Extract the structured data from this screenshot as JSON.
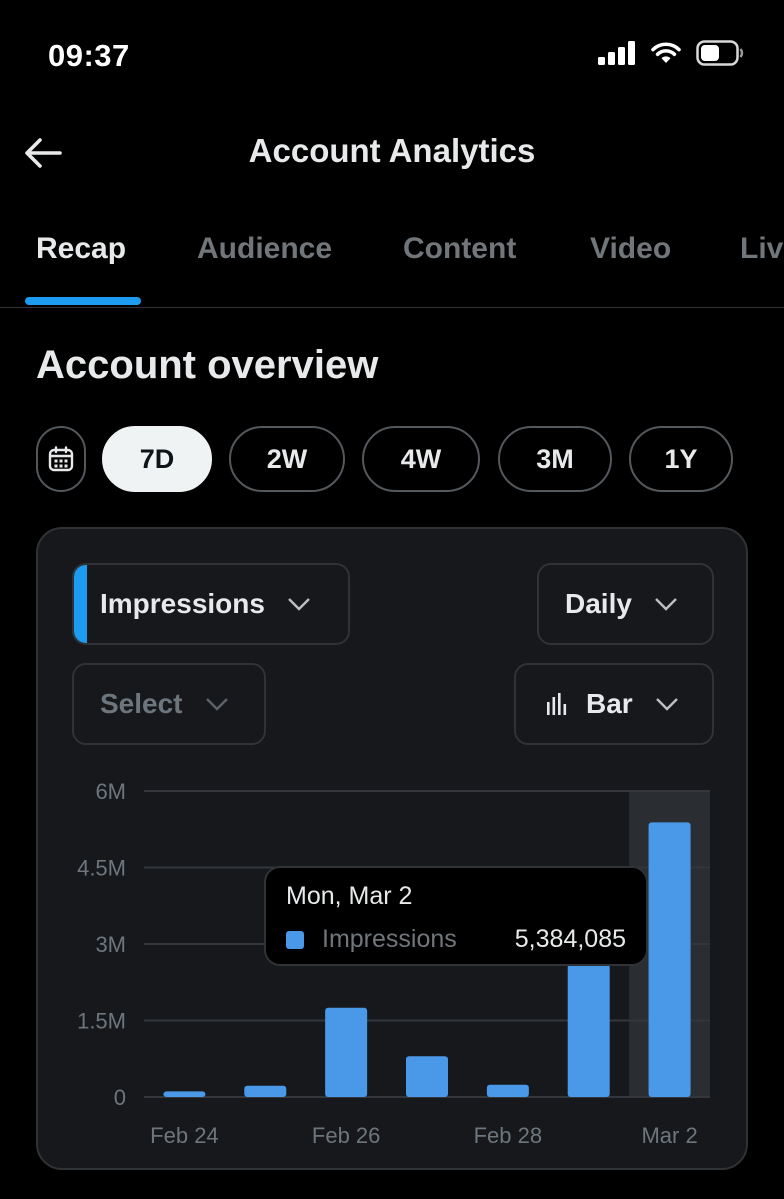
{
  "status_bar": {
    "time": "09:37",
    "icons": [
      "cellular-signal-icon",
      "wifi-icon",
      "battery-icon"
    ]
  },
  "header": {
    "title": "Account Analytics",
    "back_icon": "arrow-left-icon"
  },
  "tabs": [
    {
      "label": "Recap",
      "active": true
    },
    {
      "label": "Audience",
      "active": false
    },
    {
      "label": "Content",
      "active": false
    },
    {
      "label": "Video",
      "active": false
    },
    {
      "label": "Liv",
      "active": false
    }
  ],
  "section": {
    "title": "Account overview"
  },
  "range": {
    "calendar_icon": "calendar-icon",
    "options": [
      {
        "label": "7D",
        "selected": true
      },
      {
        "label": "2W",
        "selected": false
      },
      {
        "label": "4W",
        "selected": false
      },
      {
        "label": "3M",
        "selected": false
      },
      {
        "label": "1Y",
        "selected": false
      }
    ]
  },
  "controls": {
    "metric": "Impressions",
    "compare_placeholder": "Select",
    "granularity": "Daily",
    "chart_type": "Bar"
  },
  "tooltip": {
    "date": "Mon, Mar 2",
    "series": "Impressions",
    "value": "5,384,085"
  },
  "colors": {
    "accent": "#1d9bf0",
    "bar": "#4a99e9",
    "background": "#000000",
    "card": "#16181c"
  },
  "chart_data": {
    "type": "bar",
    "categories": [
      "Feb 24",
      "Feb 25",
      "Feb 26",
      "Feb 27",
      "Feb 28",
      "Mar 1",
      "Mar 2"
    ],
    "x_tick_labels": [
      "Feb 24",
      "Feb 26",
      "Feb 28",
      "Mar 2"
    ],
    "y_tick_labels": [
      "6M",
      "4.5M",
      "3M",
      "1.5M",
      "0"
    ],
    "y_ticks": [
      6000000,
      4500000,
      3000000,
      1500000,
      0
    ],
    "series": [
      {
        "name": "Impressions",
        "values": [
          110000,
          220000,
          1750000,
          800000,
          240000,
          2600000,
          5384085
        ]
      }
    ],
    "ylim": [
      0,
      6000000
    ],
    "grid": true,
    "highlighted_category": "Mar 2"
  }
}
